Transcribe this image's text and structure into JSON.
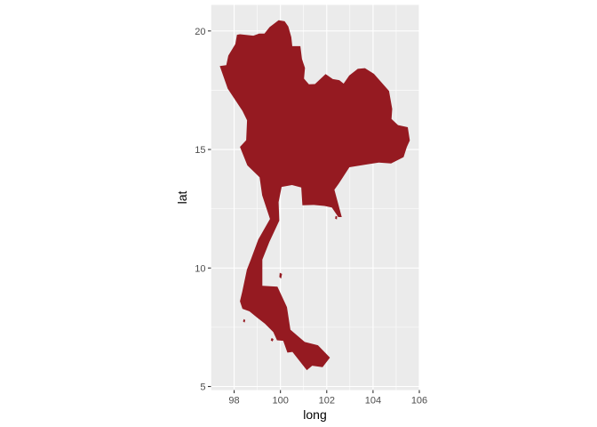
{
  "chart_data": {
    "type": "map",
    "title": "",
    "xlabel": "long",
    "ylabel": "lat",
    "xlim": [
      97.0,
      106.0
    ],
    "ylim": [
      4.85,
      21.1
    ],
    "x_ticks": [
      98,
      100,
      102,
      104,
      106
    ],
    "y_ticks": [
      5,
      10,
      15,
      20
    ],
    "grid": true,
    "legend": "none",
    "region": "Thailand",
    "fill_color": "#951a21",
    "panel_background": "#ebebeb",
    "grid_color": "#ffffff",
    "outlines": [
      {
        "name": "mainland",
        "points": [
          [
            97.38,
            18.52
          ],
          [
            97.66,
            18.56
          ],
          [
            97.75,
            18.96
          ],
          [
            98.05,
            19.45
          ],
          [
            98.12,
            19.84
          ],
          [
            98.25,
            19.86
          ],
          [
            98.83,
            19.8
          ],
          [
            99.08,
            19.89
          ],
          [
            99.31,
            19.89
          ],
          [
            99.53,
            20.16
          ],
          [
            99.92,
            20.45
          ],
          [
            100.18,
            20.41
          ],
          [
            100.34,
            20.19
          ],
          [
            100.47,
            19.74
          ],
          [
            100.51,
            19.36
          ],
          [
            100.86,
            19.36
          ],
          [
            100.93,
            18.82
          ],
          [
            101.06,
            18.44
          ],
          [
            101.02,
            17.99
          ],
          [
            101.23,
            17.75
          ],
          [
            101.49,
            17.76
          ],
          [
            101.95,
            18.18
          ],
          [
            102.26,
            17.97
          ],
          [
            102.55,
            17.92
          ],
          [
            102.73,
            17.78
          ],
          [
            102.97,
            18.12
          ],
          [
            103.34,
            18.4
          ],
          [
            103.65,
            18.43
          ],
          [
            104.04,
            18.19
          ],
          [
            104.69,
            17.47
          ],
          [
            104.83,
            16.71
          ],
          [
            104.8,
            16.29
          ],
          [
            105.08,
            16.03
          ],
          [
            105.5,
            15.94
          ],
          [
            105.59,
            15.38
          ],
          [
            105.46,
            15.1
          ],
          [
            105.32,
            14.68
          ],
          [
            104.78,
            14.41
          ],
          [
            104.25,
            14.45
          ],
          [
            103.75,
            14.37
          ],
          [
            102.98,
            14.25
          ],
          [
            102.55,
            13.6
          ],
          [
            102.33,
            13.3
          ],
          [
            102.65,
            12.15
          ],
          [
            102.5,
            12.15
          ],
          [
            102.22,
            12.55
          ],
          [
            101.9,
            12.62
          ],
          [
            101.44,
            12.66
          ],
          [
            100.95,
            12.65
          ],
          [
            100.9,
            13.4
          ],
          [
            100.5,
            13.5
          ],
          [
            100.05,
            13.42
          ],
          [
            99.92,
            12.78
          ],
          [
            99.95,
            12.0
          ],
          [
            99.52,
            11.1
          ],
          [
            99.22,
            10.35
          ],
          [
            99.22,
            9.25
          ],
          [
            99.87,
            9.21
          ],
          [
            100.28,
            8.35
          ],
          [
            100.43,
            7.4
          ],
          [
            101.05,
            6.88
          ],
          [
            101.62,
            6.74
          ],
          [
            102.14,
            6.22
          ],
          [
            101.82,
            5.82
          ],
          [
            101.37,
            5.88
          ],
          [
            101.14,
            5.69
          ],
          [
            100.96,
            5.91
          ],
          [
            100.52,
            6.46
          ],
          [
            100.3,
            6.43
          ],
          [
            100.12,
            6.93
          ],
          [
            99.85,
            6.95
          ],
          [
            99.69,
            7.3
          ],
          [
            99.33,
            7.65
          ],
          [
            98.99,
            7.91
          ],
          [
            98.66,
            8.17
          ],
          [
            98.36,
            8.28
          ],
          [
            98.25,
            8.6
          ],
          [
            98.35,
            9.01
          ],
          [
            98.55,
            9.93
          ],
          [
            98.72,
            10.35
          ],
          [
            99.04,
            11.2
          ],
          [
            99.55,
            12.07
          ],
          [
            99.21,
            13.07
          ],
          [
            99.1,
            13.83
          ],
          [
            98.57,
            14.33
          ],
          [
            98.25,
            15.11
          ],
          [
            98.52,
            15.39
          ],
          [
            98.56,
            16.23
          ],
          [
            98.36,
            16.63
          ],
          [
            97.72,
            17.57
          ],
          [
            97.38,
            18.52
          ]
        ]
      },
      {
        "name": "island-1",
        "points": [
          [
            102.38,
            12.2
          ],
          [
            102.45,
            12.18
          ],
          [
            102.44,
            12.05
          ],
          [
            102.36,
            12.08
          ]
        ]
      },
      {
        "name": "island-2",
        "points": [
          [
            99.97,
            9.8
          ],
          [
            100.07,
            9.75
          ],
          [
            100.03,
            9.55
          ],
          [
            99.95,
            9.62
          ]
        ]
      },
      {
        "name": "island-3",
        "points": [
          [
            98.42,
            7.85
          ],
          [
            98.48,
            7.8
          ],
          [
            98.45,
            7.7
          ],
          [
            98.38,
            7.75
          ]
        ]
      },
      {
        "name": "island-4",
        "points": [
          [
            99.62,
            7.05
          ],
          [
            99.7,
            7.0
          ],
          [
            99.66,
            6.9
          ],
          [
            99.58,
            6.95
          ]
        ]
      }
    ]
  }
}
